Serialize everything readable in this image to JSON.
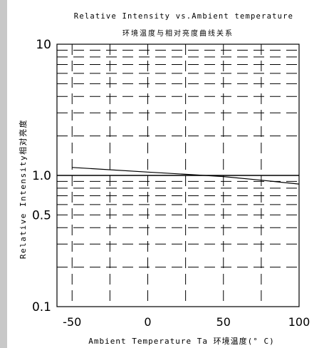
{
  "chart_data": {
    "type": "line",
    "title": "Relative Intensity vs.Ambient temperature",
    "subtitle": "环境温度与相对亮度曲线关系",
    "xlabel": "Ambient Temperature Ta 环境温度(° C)",
    "ylabel": "Relative Intensity相对亮度",
    "xlim": [
      -60,
      100
    ],
    "ylim": [
      0.1,
      10
    ],
    "yscale": "log",
    "grid": true,
    "x_ticks": [
      -50,
      0,
      50,
      100
    ],
    "x_tick_labels": [
      "-50",
      "0",
      "50",
      "100"
    ],
    "y_ticks": [
      0.1,
      0.5,
      1.0,
      10
    ],
    "y_tick_labels": [
      "0.1",
      "0.5",
      "1.0",
      "10"
    ],
    "series": [
      {
        "x": [
          -50,
          0,
          25,
          50,
          75,
          100
        ],
        "y": [
          1.15,
          1.06,
          1.02,
          0.98,
          0.92,
          0.86
        ]
      }
    ],
    "colors": {
      "line": "#000000",
      "grid": "#000000",
      "side_strip": "#c8c8c8"
    }
  }
}
